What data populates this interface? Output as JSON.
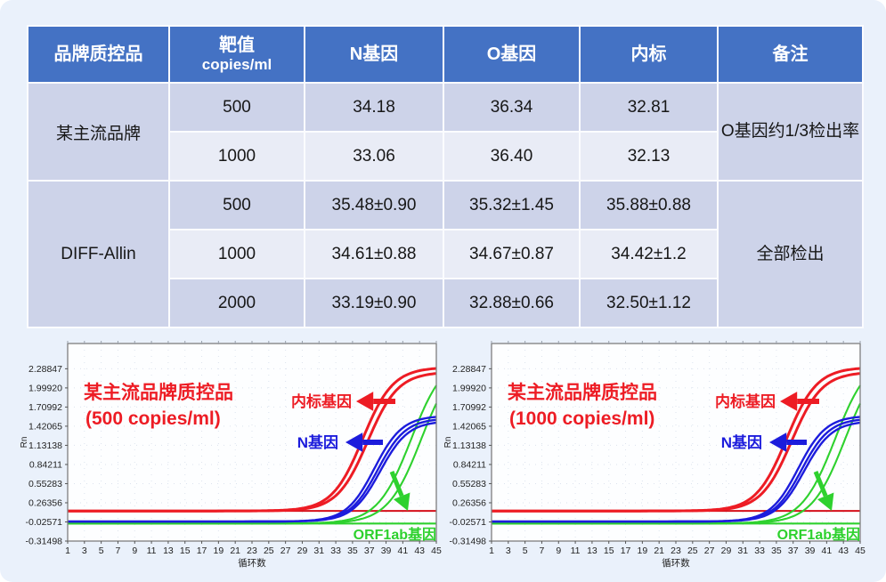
{
  "page": {
    "background": "#eaf1fb"
  },
  "table": {
    "header_bg": "#4472c4",
    "band_dark": "#cdd3e9",
    "band_light": "#e9ecf6",
    "headers": [
      "品牌质控品",
      "靶值",
      "N基因",
      "O基因",
      "内标",
      "备注"
    ],
    "target_header_sub": "copies/ml",
    "groups": [
      {
        "brand": "某主流品牌",
        "remark": "O基因约1/3检出率",
        "rows": [
          {
            "target": "500",
            "n_gene": "34.18",
            "o_gene": "36.34",
            "internal": "32.81"
          },
          {
            "target": "1000",
            "n_gene": "33.06",
            "o_gene": "36.40",
            "internal": "32.13"
          }
        ]
      },
      {
        "brand": "DIFF-Allin",
        "remark": "全部检出",
        "rows": [
          {
            "target": "500",
            "n_gene": "35.48±0.90",
            "o_gene": "35.32±1.45",
            "internal": "35.88±0.88"
          },
          {
            "target": "1000",
            "n_gene": "34.61±0.88",
            "o_gene": "34.67±0.87",
            "internal": "34.42±1.2"
          },
          {
            "target": "2000",
            "n_gene": "33.19±0.90",
            "o_gene": "32.88±0.66",
            "internal": "32.50±1.12"
          }
        ]
      }
    ]
  },
  "chart_data": [
    {
      "type": "line",
      "title_line1": "某主流品牌质控品",
      "title_line2": "(500 copies/ml)",
      "title_color": "#ed1c24",
      "xlabel": "循环数",
      "ylabel": "Rn",
      "xlim": [
        1,
        45
      ],
      "ylim": [
        -0.31498,
        2.67
      ],
      "x_ticks": [
        1,
        3,
        5,
        7,
        9,
        11,
        13,
        15,
        17,
        19,
        21,
        23,
        25,
        27,
        29,
        31,
        33,
        35,
        37,
        39,
        41,
        43,
        45
      ],
      "y_tick_labels": [
        "2.28847",
        "1.99920",
        "1.70992",
        "1.42065",
        "1.13138",
        "0.84211",
        "0.55283",
        "0.26356",
        "-0.02571",
        "-0.31498"
      ],
      "grid": "dotted",
      "legend_position": "none",
      "threshold": {
        "value": 0.14,
        "color": "#d40f1a"
      },
      "series": [
        {
          "name": "内标基因",
          "color": "#ed1c24",
          "stroke_width": 3,
          "sigmoids": [
            {
              "baseline": 0.14,
              "plateau": 2.31,
              "midpoint": 36.2,
              "slope": 0.55
            },
            {
              "baseline": 0.14,
              "plateau": 2.24,
              "midpoint": 36.8,
              "slope": 0.55
            }
          ]
        },
        {
          "name": "N基因",
          "color": "#1c1cdc",
          "stroke_width": 2.4,
          "sigmoids": [
            {
              "baseline": -0.02,
              "plateau": 1.58,
              "midpoint": 37.6,
              "slope": 0.6
            },
            {
              "baseline": -0.02,
              "plateau": 1.54,
              "midpoint": 38.0,
              "slope": 0.6
            },
            {
              "baseline": -0.02,
              "plateau": 1.5,
              "midpoint": 38.3,
              "slope": 0.6
            }
          ]
        },
        {
          "name": "ORF1ab基因",
          "color": "#2ed12e",
          "stroke_width": 2.1,
          "sigmoids": [
            {
              "baseline": -0.05,
              "plateau": 2.5,
              "midpoint": 42.0,
              "slope": 0.5
            },
            {
              "baseline": -0.05,
              "plateau": 2.5,
              "midpoint": 43.2,
              "slope": 0.5
            },
            {
              "baseline": -0.05,
              "plateau": -0.05,
              "midpoint": 0,
              "slope": 0
            }
          ]
        }
      ],
      "labels": [
        {
          "text": "内标基因",
          "color": "#ed1c24"
        },
        {
          "text": "N基因",
          "color": "#1c1cdc"
        },
        {
          "text": "ORF1ab基因",
          "color": "#2ed12e"
        }
      ]
    },
    {
      "type": "line",
      "title_line1": "某主流品牌质控品",
      "title_line2": "(1000 copies/ml)",
      "title_color": "#ed1c24",
      "xlabel": "循环数",
      "ylabel": "Rn",
      "xlim": [
        1,
        45
      ],
      "ylim": [
        -0.31498,
        2.67
      ],
      "x_ticks": [
        1,
        3,
        5,
        7,
        9,
        11,
        13,
        15,
        17,
        19,
        21,
        23,
        25,
        27,
        29,
        31,
        33,
        35,
        37,
        39,
        41,
        43,
        45
      ],
      "y_tick_labels": [
        "2.28847",
        "1.99920",
        "1.70992",
        "1.42065",
        "1.13138",
        "0.84211",
        "0.55283",
        "0.26356",
        "-0.02571",
        "-0.31498"
      ],
      "grid": "dotted",
      "legend_position": "none",
      "threshold": {
        "value": 0.14,
        "color": "#d40f1a"
      },
      "series": [
        {
          "name": "内标基因",
          "color": "#ed1c24",
          "stroke_width": 3,
          "sigmoids": [
            {
              "baseline": 0.14,
              "plateau": 2.31,
              "midpoint": 36.2,
              "slope": 0.55
            },
            {
              "baseline": 0.14,
              "plateau": 2.24,
              "midpoint": 36.8,
              "slope": 0.55
            }
          ]
        },
        {
          "name": "N基因",
          "color": "#1c1cdc",
          "stroke_width": 2.4,
          "sigmoids": [
            {
              "baseline": -0.02,
              "plateau": 1.58,
              "midpoint": 37.6,
              "slope": 0.6
            },
            {
              "baseline": -0.02,
              "plateau": 1.54,
              "midpoint": 38.0,
              "slope": 0.6
            },
            {
              "baseline": -0.02,
              "plateau": 1.5,
              "midpoint": 38.3,
              "slope": 0.6
            }
          ]
        },
        {
          "name": "ORF1ab基因",
          "color": "#2ed12e",
          "stroke_width": 2.1,
          "sigmoids": [
            {
              "baseline": -0.05,
              "plateau": 2.5,
              "midpoint": 42.0,
              "slope": 0.5
            },
            {
              "baseline": -0.05,
              "plateau": 2.5,
              "midpoint": 43.2,
              "slope": 0.5
            },
            {
              "baseline": -0.05,
              "plateau": -0.05,
              "midpoint": 0,
              "slope": 0
            }
          ]
        }
      ],
      "labels": [
        {
          "text": "内标基因",
          "color": "#ed1c24"
        },
        {
          "text": "N基因",
          "color": "#1c1cdc"
        },
        {
          "text": "ORF1ab基因",
          "color": "#2ed12e"
        }
      ]
    }
  ]
}
